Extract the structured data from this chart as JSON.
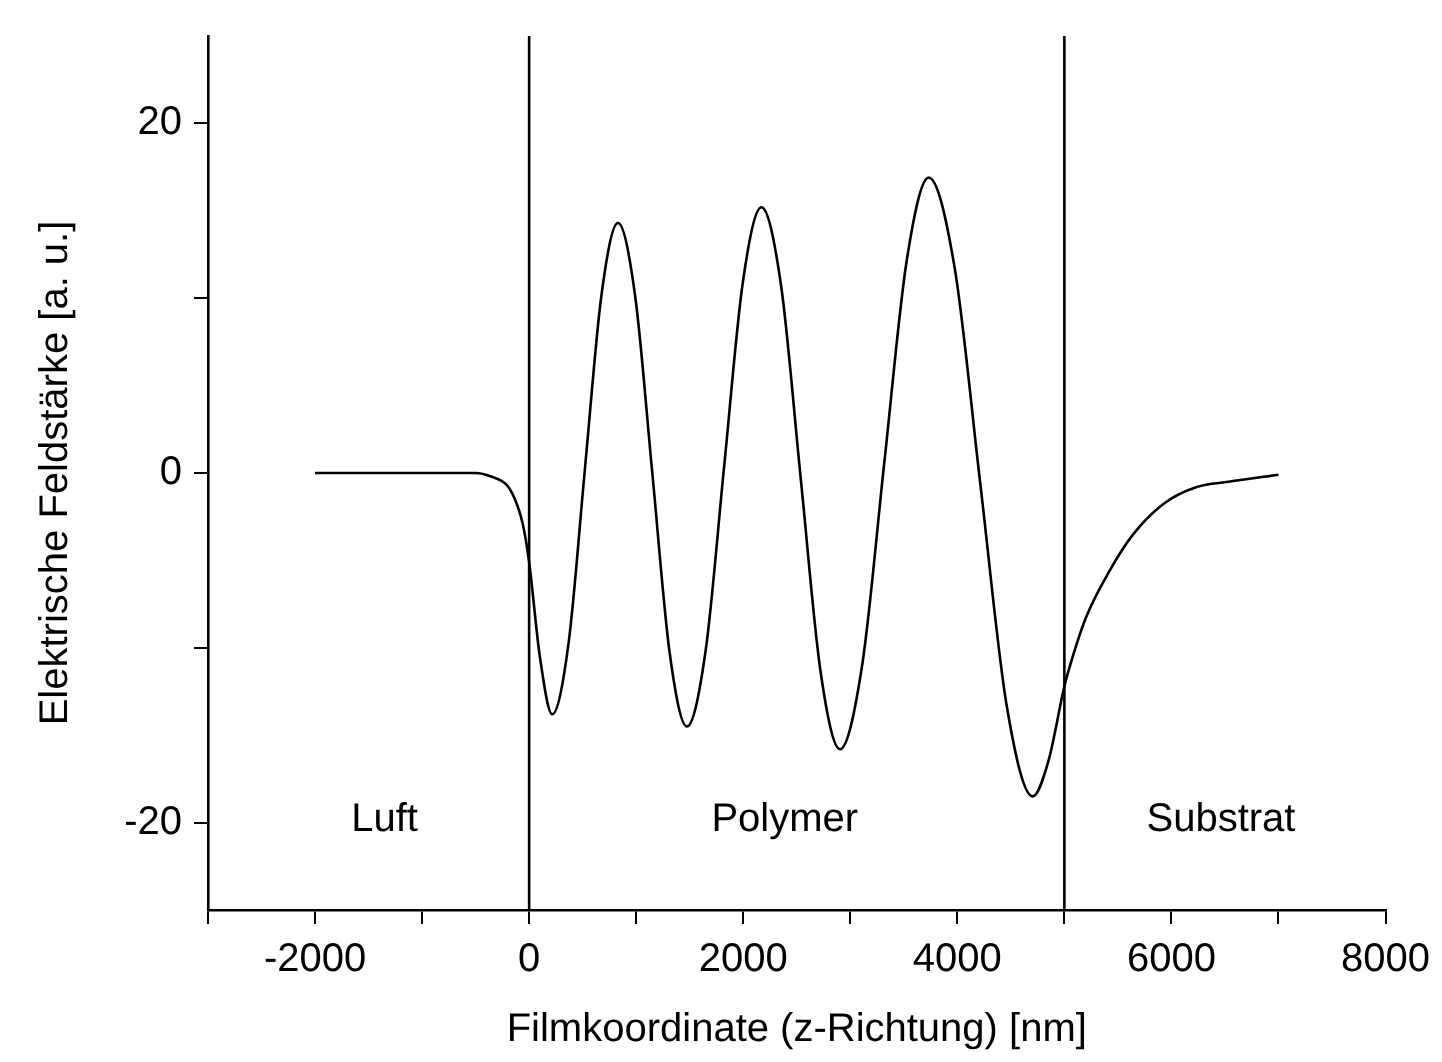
{
  "chart_data": {
    "type": "line",
    "xlabel": "Filmkoordinate (z-Richtung) [nm]",
    "ylabel": "Elektrische Feldstärke [a. u.]",
    "xlim": [
      -3000,
      8000
    ],
    "ylim": [
      -25,
      25
    ],
    "xticks": [
      {
        "value": -3000,
        "label": null
      },
      -2000,
      {
        "value": -1000,
        "label": null
      },
      0,
      {
        "value": 1000,
        "label": null
      },
      2000,
      {
        "value": 3000,
        "label": null
      },
      4000,
      {
        "value": 5000,
        "label": null
      },
      6000,
      {
        "value": 7000,
        "label": null
      },
      8000
    ],
    "yticks": [
      -20,
      {
        "value": -10,
        "label": null
      },
      0,
      {
        "value": 10,
        "label": null
      },
      20
    ],
    "grid": false,
    "legend": false,
    "marker": "none",
    "line_style": "solid",
    "series": [
      {
        "color": "#000000",
        "x": [
          -2000,
          -1500,
          -1000,
          -500,
          -356,
          -207,
          -133,
          -60,
          0,
          100,
          215,
          369,
          522,
          676,
          830,
          991,
          1152,
          1313,
          1474,
          1648,
          1822,
          1996,
          2170,
          2354,
          2537,
          2721,
          2904,
          3111,
          3318,
          3526,
          3733,
          3976,
          4218,
          4461,
          4704,
          4850,
          5000,
          5030,
          5200,
          5422,
          5644,
          5941,
          6237,
          6533,
          7000
        ],
        "values": [
          0,
          0,
          0,
          0,
          -0.2,
          -0.7,
          -1.5,
          -2.9,
          -5.1,
          -10.5,
          -13.8,
          -9.7,
          0.3,
          10.2,
          14.3,
          10.1,
          -0.1,
          -10.3,
          -14.5,
          -10.2,
          0.4,
          10.9,
          15.2,
          10.7,
          -0.3,
          -11.3,
          -15.8,
          -11.0,
          0.6,
          12.1,
          16.9,
          11.7,
          -0.8,
          -13.3,
          -18.5,
          -16.5,
          -12.2,
          -11.5,
          -8.3,
          -5.6,
          -3.5,
          -1.7,
          -0.8,
          -0.5,
          -0.1
        ]
      }
    ],
    "ref_lines": [
      {
        "axis": "x",
        "value": 0,
        "color": "#000000"
      },
      {
        "axis": "x",
        "value": 5000,
        "color": "#000000"
      }
    ],
    "annotations": [
      "Luft",
      "Polymer",
      "Substrat"
    ]
  }
}
